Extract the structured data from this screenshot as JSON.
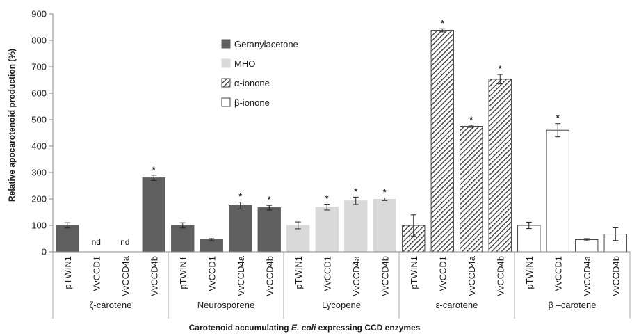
{
  "chart_data": {
    "type": "bar",
    "ylabel": "Relative apocarotenoid production (%)",
    "xlabel_parts": [
      "Carotenoid accumulating ",
      "E. coli",
      " expressing CCD enzymes"
    ],
    "ylim": [
      0,
      900
    ],
    "yticks": [
      "0",
      "100",
      "200",
      "300",
      "400",
      "500",
      "600",
      "700",
      "800",
      "900"
    ],
    "legend_position": "top-center",
    "legend": [
      {
        "name": "Geranylacetone",
        "pattern": "solid-dark"
      },
      {
        "name": "MHO",
        "pattern": "solid-light"
      },
      {
        "name": "α-ionone",
        "pattern": "diagonal-hatch"
      },
      {
        "name": "β-ionone",
        "pattern": "white"
      }
    ],
    "colors": {
      "dark": "#5f5f5f",
      "light": "#d9d9d9",
      "hatch": "#333333",
      "white": "#ffffff",
      "outline": "#444444"
    },
    "groups": [
      {
        "label": "ζ-carotene",
        "pattern": "solid-dark",
        "bars": [
          {
            "category": "pTWIN1",
            "value": 100,
            "error": 10,
            "annotation": ""
          },
          {
            "category": "VvCCD1",
            "value": 0,
            "error": 0,
            "annotation": "nd"
          },
          {
            "category": "VvCCD4a",
            "value": 0,
            "error": 0,
            "annotation": "nd"
          },
          {
            "category": "VvCCD4b",
            "value": 280,
            "error": 10,
            "annotation": "*"
          }
        ]
      },
      {
        "label": "Neurosporene",
        "pattern": "solid-dark",
        "bars": [
          {
            "category": "pTWIN1",
            "value": 100,
            "error": 10,
            "annotation": ""
          },
          {
            "category": "VvCCD1",
            "value": 46,
            "error": 4,
            "annotation": ""
          },
          {
            "category": "VvCCD4a",
            "value": 175,
            "error": 13,
            "annotation": "*"
          },
          {
            "category": "VvCCD4b",
            "value": 167,
            "error": 9,
            "annotation": "*"
          }
        ]
      },
      {
        "label": "Lycopene",
        "pattern": "solid-light",
        "bars": [
          {
            "category": "pTWIN1",
            "value": 100,
            "error": 13,
            "annotation": ""
          },
          {
            "category": "VvCCD1",
            "value": 169,
            "error": 11,
            "annotation": "*"
          },
          {
            "category": "VvCCD4a",
            "value": 193,
            "error": 14,
            "annotation": "*"
          },
          {
            "category": "VvCCD4b",
            "value": 199,
            "error": 5,
            "annotation": "*"
          }
        ]
      },
      {
        "label": "ε-carotene",
        "pattern": "diagonal-hatch",
        "bars": [
          {
            "category": "pTWIN1",
            "value": 100,
            "error": 40,
            "annotation": ""
          },
          {
            "category": "VvCCD1",
            "value": 838,
            "error": 6,
            "annotation": "*"
          },
          {
            "category": "VvCCD4a",
            "value": 475,
            "error": 4,
            "annotation": "*"
          },
          {
            "category": "VvCCD4b",
            "value": 653,
            "error": 18,
            "annotation": "*"
          }
        ]
      },
      {
        "label": "β –carotene",
        "pattern": "white",
        "bars": [
          {
            "category": "pTWIN1",
            "value": 100,
            "error": 12,
            "annotation": ""
          },
          {
            "category": "VvCCD1",
            "value": 460,
            "error": 25,
            "annotation": "*"
          },
          {
            "category": "VvCCD4a",
            "value": 46,
            "error": 4,
            "annotation": ""
          },
          {
            "category": "VvCCD4b",
            "value": 67,
            "error": 24,
            "annotation": ""
          }
        ]
      }
    ]
  }
}
